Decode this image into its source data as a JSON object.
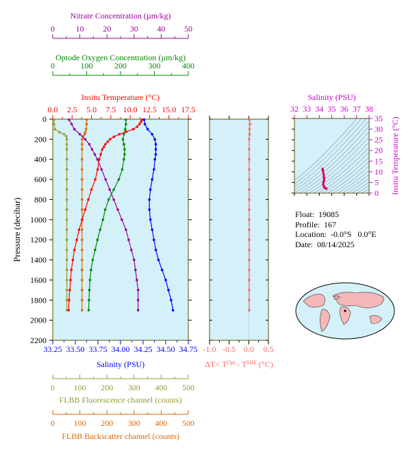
{
  "float_info": {
    "float_label": "Float:",
    "float_value": "19085",
    "profile_label": "Profile:",
    "profile_value": "167",
    "location_label": "Location:",
    "location_value": "-0.0°S   0.0°E",
    "date_label": "Date:",
    "date_value": "08/14/2025"
  },
  "colors": {
    "temperature": "#ff0000",
    "salinity": "#0000ff",
    "oxygen": "#008800",
    "nitrate": "#990099",
    "fluorescence": "#999933",
    "backscatter": "#dd6600",
    "delta_t": "#ff6666",
    "ts_curve": "#e0005a",
    "panel_bg": "#d4f0f8",
    "frame": "#555500",
    "ts_axis": "#cc00cc"
  },
  "chart_data": [
    {
      "type": "line",
      "panel": "main-profile",
      "ylabel": "Pressure (decibar)",
      "ylim": [
        0,
        2200
      ],
      "yticks": [
        "0",
        "200",
        "400",
        "600",
        "800",
        "1000",
        "1200",
        "1400",
        "1600",
        "1800",
        "2000",
        "2200"
      ],
      "axes": {
        "temperature": {
          "label": "Insitu Temperature (°C)",
          "range": [
            0,
            17.5
          ],
          "ticks": [
            "0.0",
            "2.5",
            "5.0",
            "7.5",
            "10.0",
            "12.5",
            "15.0",
            "17.5"
          ]
        },
        "salinity": {
          "label": "Salinity (PSU)",
          "range": [
            33.25,
            34.75
          ],
          "ticks": [
            "33.25",
            "33.50",
            "33.75",
            "34.00",
            "34.25",
            "34.50",
            "34.75"
          ]
        },
        "oxygen": {
          "label": "Optode Oxygen Concentration (µm/kg)",
          "range": [
            0,
            400
          ],
          "ticks": [
            "0",
            "100",
            "200",
            "300",
            "400"
          ]
        },
        "nitrate": {
          "label": "Nitrate Concentration (µm/kg)",
          "range": [
            0,
            50
          ],
          "ticks": [
            "0",
            "10",
            "20",
            "30",
            "40",
            "50"
          ]
        },
        "fluorescence": {
          "label": "FLBB Fluorescence channel (counts)",
          "range": [
            0,
            500
          ],
          "ticks": [
            "0",
            "100",
            "200",
            "300",
            "400",
            "500"
          ]
        },
        "backscatter": {
          "label": "FLBB Backscatter channel (counts)",
          "range": [
            0,
            500
          ],
          "ticks": [
            "0",
            "100",
            "200",
            "300",
            "400",
            "500"
          ]
        }
      },
      "series": [
        {
          "key": "temperature",
          "points": [
            [
              11.5,
              5
            ],
            [
              11.4,
              25
            ],
            [
              11.2,
              50
            ],
            [
              10.9,
              75
            ],
            [
              10.4,
              100
            ],
            [
              9.5,
              125
            ],
            [
              8.6,
              150
            ],
            [
              7.9,
              175
            ],
            [
              7.4,
              200
            ],
            [
              7.1,
              225
            ],
            [
              6.8,
              250
            ],
            [
              6.6,
              275
            ],
            [
              6.4,
              300
            ],
            [
              6.2,
              350
            ],
            [
              6.0,
              400
            ],
            [
              5.8,
              500
            ],
            [
              5.5,
              600
            ],
            [
              5.0,
              700
            ],
            [
              4.6,
              800
            ],
            [
              4.2,
              900
            ],
            [
              3.8,
              1000
            ],
            [
              3.4,
              1100
            ],
            [
              3.1,
              1200
            ],
            [
              2.8,
              1300
            ],
            [
              2.6,
              1400
            ],
            [
              2.4,
              1500
            ],
            [
              2.3,
              1600
            ],
            [
              2.2,
              1700
            ],
            [
              2.1,
              1800
            ],
            [
              2.05,
              1900
            ]
          ]
        },
        {
          "key": "salinity",
          "points": [
            [
              34.26,
              5
            ],
            [
              34.27,
              50
            ],
            [
              34.3,
              100
            ],
            [
              34.35,
              150
            ],
            [
              34.38,
              200
            ],
            [
              34.39,
              250
            ],
            [
              34.39,
              300
            ],
            [
              34.39,
              350
            ],
            [
              34.38,
              400
            ],
            [
              34.37,
              500
            ],
            [
              34.35,
              600
            ],
            [
              34.33,
              700
            ],
            [
              34.32,
              800
            ],
            [
              34.32,
              900
            ],
            [
              34.33,
              1000
            ],
            [
              34.35,
              1100
            ],
            [
              34.37,
              1200
            ],
            [
              34.39,
              1300
            ],
            [
              34.42,
              1400
            ],
            [
              34.46,
              1500
            ],
            [
              34.5,
              1600
            ],
            [
              34.53,
              1700
            ],
            [
              34.56,
              1800
            ],
            [
              34.58,
              1900
            ]
          ]
        },
        {
          "key": "oxygen",
          "points": [
            [
              216,
              5
            ],
            [
              216,
              50
            ],
            [
              214,
              100
            ],
            [
              210,
              150
            ],
            [
              207,
              200
            ],
            [
              210,
              250
            ],
            [
              212,
              300
            ],
            [
              212,
              350
            ],
            [
              210,
              400
            ],
            [
              205,
              500
            ],
            [
              195,
              600
            ],
            [
              180,
              700
            ],
            [
              165,
              800
            ],
            [
              155,
              900
            ],
            [
              148,
              1000
            ],
            [
              140,
              1100
            ],
            [
              132,
              1200
            ],
            [
              125,
              1300
            ],
            [
              118,
              1400
            ],
            [
              113,
              1500
            ],
            [
              110,
              1600
            ],
            [
              108,
              1700
            ],
            [
              107,
              1800
            ],
            [
              106,
              1900
            ]
          ]
        },
        {
          "key": "nitrate",
          "points": [
            [
              6,
              5
            ],
            [
              7,
              50
            ],
            [
              8,
              100
            ],
            [
              10,
              150
            ],
            [
              12,
              200
            ],
            [
              13.5,
              250
            ],
            [
              14.5,
              300
            ],
            [
              15.5,
              350
            ],
            [
              16.5,
              400
            ],
            [
              18,
              500
            ],
            [
              19.5,
              600
            ],
            [
              21,
              700
            ],
            [
              22.5,
              800
            ],
            [
              24,
              900
            ],
            [
              25.5,
              1000
            ],
            [
              27,
              1100
            ],
            [
              28,
              1200
            ],
            [
              29,
              1300
            ],
            [
              30,
              1400
            ],
            [
              30.5,
              1500
            ],
            [
              31,
              1600
            ],
            [
              31.5,
              1700
            ],
            [
              31.5,
              1800
            ],
            [
              31.5,
              1900
            ]
          ]
        },
        {
          "key": "fluorescence",
          "points": [
            [
              5,
              5
            ],
            [
              5,
              50
            ],
            [
              8,
              100
            ],
            [
              25,
              130
            ],
            [
              42,
              150
            ],
            [
              50,
              170
            ],
            [
              52,
              200
            ],
            [
              52,
              250
            ],
            [
              52,
              300
            ],
            [
              52,
              400
            ],
            [
              52,
              500
            ],
            [
              52,
              600
            ],
            [
              52,
              700
            ],
            [
              52,
              800
            ],
            [
              52,
              900
            ],
            [
              52,
              1000
            ],
            [
              52,
              1100
            ],
            [
              52,
              1200
            ],
            [
              52,
              1300
            ],
            [
              52,
              1400
            ],
            [
              52,
              1500
            ],
            [
              52,
              1600
            ],
            [
              52,
              1700
            ],
            [
              52,
              1800
            ],
            [
              52,
              1900
            ]
          ]
        },
        {
          "key": "backscatter",
          "points": [
            [
              125,
              5
            ],
            [
              125,
              50
            ],
            [
              123,
              100
            ],
            [
              120,
              130
            ],
            [
              118,
              150
            ],
            [
              112,
              170
            ],
            [
              108,
              200
            ],
            [
              108,
              250
            ],
            [
              108,
              300
            ],
            [
              108,
              400
            ],
            [
              108,
              500
            ],
            [
              108,
              600
            ],
            [
              108,
              700
            ],
            [
              108,
              800
            ],
            [
              108,
              900
            ],
            [
              108,
              1000
            ],
            [
              108,
              1100
            ],
            [
              108,
              1200
            ],
            [
              108,
              1300
            ],
            [
              108,
              1400
            ],
            [
              108,
              1500
            ],
            [
              108,
              1600
            ],
            [
              108,
              1700
            ],
            [
              108,
              1800
            ],
            [
              108,
              1900
            ]
          ]
        }
      ]
    },
    {
      "type": "line",
      "panel": "delta-t",
      "xlabel": "ΔT= T^Opt - T^SBE (°C)",
      "xlim": [
        -1.0,
        0.5
      ],
      "xticks": [
        "-1.0",
        "-0.5",
        "0.0",
        "0.5"
      ],
      "ylim": [
        0,
        2200
      ],
      "series": [
        {
          "key": "delta_t",
          "points": [
            [
              0.02,
              5
            ],
            [
              0.03,
              50
            ],
            [
              0.02,
              100
            ],
            [
              0.02,
              150
            ],
            [
              0.01,
              200
            ],
            [
              0.01,
              300
            ],
            [
              0.01,
              400
            ],
            [
              0.01,
              500
            ],
            [
              0.01,
              600
            ],
            [
              0.01,
              700
            ],
            [
              0.01,
              800
            ],
            [
              0.01,
              900
            ],
            [
              0.01,
              1000
            ],
            [
              0.01,
              1100
            ],
            [
              0.01,
              1200
            ],
            [
              0.01,
              1300
            ],
            [
              0.01,
              1400
            ],
            [
              0.01,
              1500
            ],
            [
              0.01,
              1600
            ],
            [
              0.01,
              1700
            ],
            [
              0.01,
              1800
            ],
            [
              0.01,
              1900
            ]
          ]
        }
      ]
    },
    {
      "type": "scatter",
      "panel": "ts-diagram",
      "xlabel": "Salinity (PSU)",
      "ylabel": "Insitu Temperature (°C)",
      "xlim": [
        32,
        38
      ],
      "ylim": [
        0,
        35
      ],
      "xticks": [
        "32",
        "33",
        "34",
        "35",
        "36",
        "37",
        "38"
      ],
      "yticks": [
        "0",
        "5",
        "10",
        "15",
        "20",
        "25",
        "30",
        "35"
      ],
      "points": [
        [
          34.58,
          2.05
        ],
        [
          34.56,
          2.1
        ],
        [
          34.53,
          2.2
        ],
        [
          34.5,
          2.3
        ],
        [
          34.46,
          2.4
        ],
        [
          34.42,
          2.6
        ],
        [
          34.39,
          2.8
        ],
        [
          34.37,
          3.1
        ],
        [
          34.35,
          3.4
        ],
        [
          34.33,
          3.8
        ],
        [
          34.32,
          4.2
        ],
        [
          34.32,
          4.6
        ],
        [
          34.33,
          5.0
        ],
        [
          34.35,
          5.5
        ],
        [
          34.37,
          5.8
        ],
        [
          34.38,
          6.0
        ],
        [
          34.39,
          6.2
        ],
        [
          34.39,
          6.6
        ],
        [
          34.39,
          7.1
        ],
        [
          34.38,
          7.4
        ],
        [
          34.36,
          7.9
        ],
        [
          34.35,
          8.6
        ],
        [
          34.32,
          9.5
        ],
        [
          34.3,
          10.4
        ],
        [
          34.28,
          10.9
        ],
        [
          34.27,
          11.2
        ],
        [
          34.26,
          11.5
        ]
      ]
    }
  ],
  "map": {
    "label": "world-map"
  }
}
